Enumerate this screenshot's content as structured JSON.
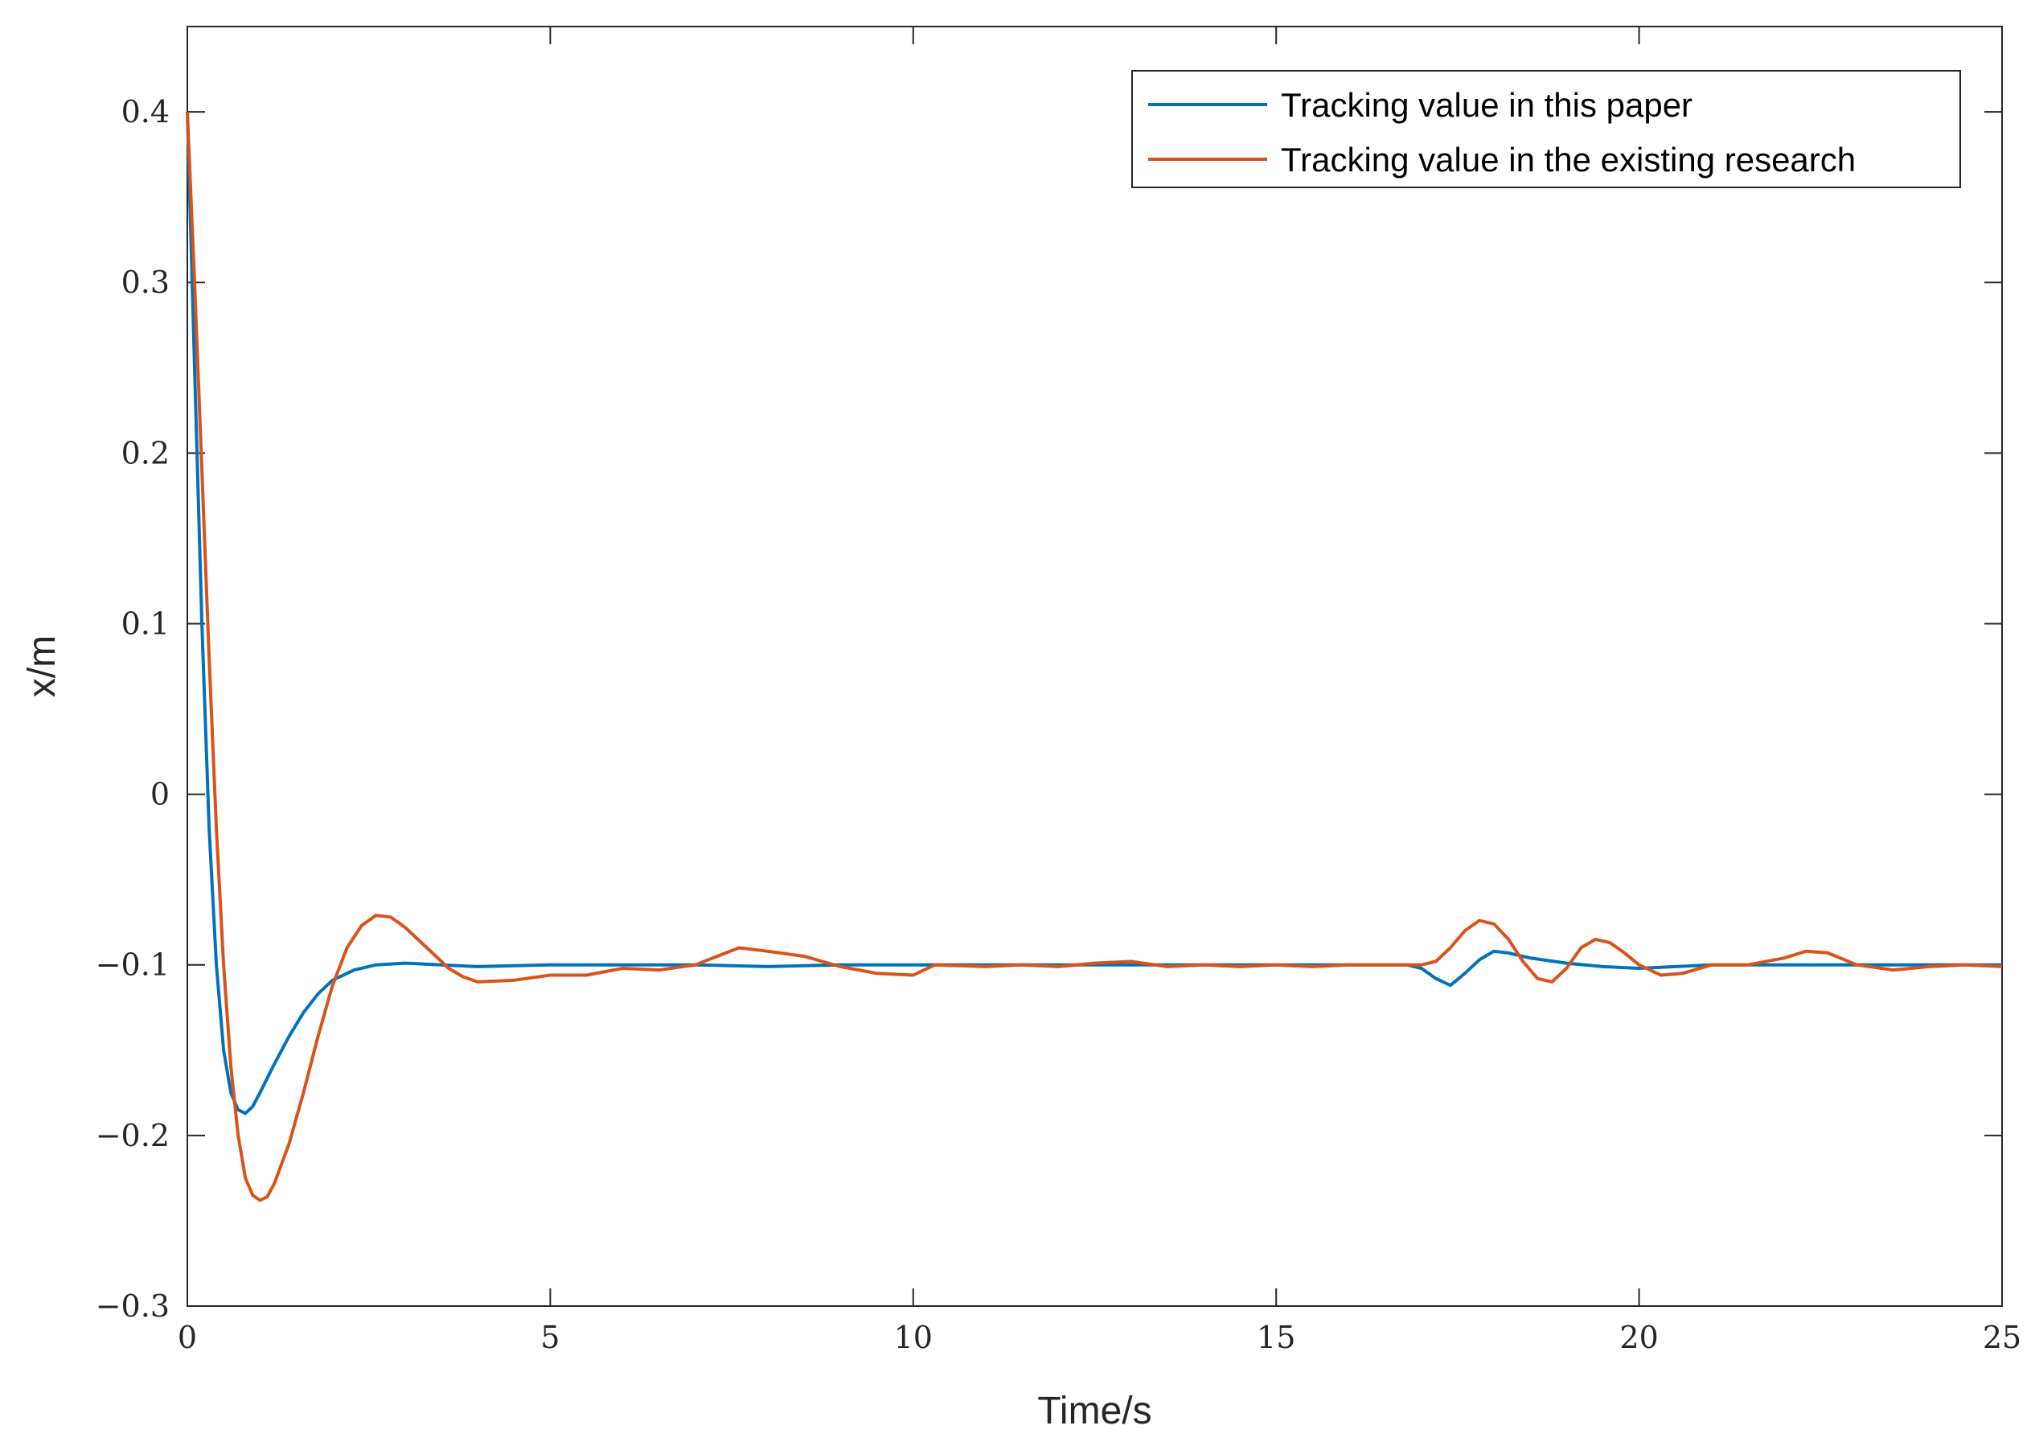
{
  "chart_data": {
    "type": "line",
    "title": "",
    "xlabel": "Time/s",
    "ylabel": "x/m",
    "xlim": [
      0,
      25
    ],
    "ylim": [
      -0.3,
      0.45
    ],
    "xticks": [
      0,
      5,
      10,
      15,
      20,
      25
    ],
    "xtick_labels": [
      "0",
      "5",
      "10",
      "15",
      "20",
      "25"
    ],
    "yticks": [
      -0.3,
      -0.2,
      -0.1,
      0,
      0.1,
      0.2,
      0.3,
      0.4
    ],
    "ytick_labels": [
      "−0.3",
      "−0.2",
      "−0.1",
      "0",
      "0.1",
      "0.2",
      "0.3",
      "0.4"
    ],
    "grid": false,
    "legend_position": "top-right",
    "series": [
      {
        "name": "Tracking value in this paper",
        "color": "#0072BD",
        "points": [
          [
            0,
            0.4
          ],
          [
            0.1,
            0.25
          ],
          [
            0.2,
            0.1
          ],
          [
            0.3,
            -0.02
          ],
          [
            0.4,
            -0.1
          ],
          [
            0.5,
            -0.15
          ],
          [
            0.6,
            -0.175
          ],
          [
            0.7,
            -0.185
          ],
          [
            0.8,
            -0.187
          ],
          [
            0.9,
            -0.183
          ],
          [
            1.0,
            -0.175
          ],
          [
            1.2,
            -0.158
          ],
          [
            1.4,
            -0.142
          ],
          [
            1.6,
            -0.128
          ],
          [
            1.8,
            -0.117
          ],
          [
            2.0,
            -0.109
          ],
          [
            2.3,
            -0.103
          ],
          [
            2.6,
            -0.1
          ],
          [
            3.0,
            -0.099
          ],
          [
            3.5,
            -0.1
          ],
          [
            4.0,
            -0.101
          ],
          [
            5.0,
            -0.1
          ],
          [
            6.0,
            -0.1
          ],
          [
            7.0,
            -0.1
          ],
          [
            8.0,
            -0.101
          ],
          [
            9.0,
            -0.1
          ],
          [
            10.0,
            -0.1
          ],
          [
            11.0,
            -0.1
          ],
          [
            12.0,
            -0.1
          ],
          [
            13.0,
            -0.1
          ],
          [
            14.0,
            -0.1
          ],
          [
            15.0,
            -0.1
          ],
          [
            16.0,
            -0.1
          ],
          [
            16.8,
            -0.1
          ],
          [
            17.0,
            -0.102
          ],
          [
            17.2,
            -0.108
          ],
          [
            17.4,
            -0.112
          ],
          [
            17.6,
            -0.105
          ],
          [
            17.8,
            -0.097
          ],
          [
            18.0,
            -0.092
          ],
          [
            18.2,
            -0.093
          ],
          [
            18.5,
            -0.096
          ],
          [
            19.0,
            -0.099
          ],
          [
            19.5,
            -0.101
          ],
          [
            20.0,
            -0.102
          ],
          [
            21.0,
            -0.1
          ],
          [
            22.0,
            -0.1
          ],
          [
            23.0,
            -0.1
          ],
          [
            24.0,
            -0.1
          ],
          [
            25.0,
            -0.1
          ]
        ]
      },
      {
        "name": "Tracking value in the existing research",
        "color": "#D95319",
        "points": [
          [
            0,
            0.4
          ],
          [
            0.1,
            0.3
          ],
          [
            0.2,
            0.19
          ],
          [
            0.3,
            0.08
          ],
          [
            0.4,
            -0.02
          ],
          [
            0.5,
            -0.1
          ],
          [
            0.6,
            -0.16
          ],
          [
            0.7,
            -0.2
          ],
          [
            0.8,
            -0.225
          ],
          [
            0.9,
            -0.235
          ],
          [
            1.0,
            -0.238
          ],
          [
            1.1,
            -0.236
          ],
          [
            1.2,
            -0.228
          ],
          [
            1.4,
            -0.205
          ],
          [
            1.6,
            -0.175
          ],
          [
            1.8,
            -0.142
          ],
          [
            2.0,
            -0.112
          ],
          [
            2.2,
            -0.09
          ],
          [
            2.4,
            -0.077
          ],
          [
            2.6,
            -0.071
          ],
          [
            2.8,
            -0.072
          ],
          [
            3.0,
            -0.078
          ],
          [
            3.2,
            -0.086
          ],
          [
            3.4,
            -0.094
          ],
          [
            3.6,
            -0.102
          ],
          [
            3.8,
            -0.107
          ],
          [
            4.0,
            -0.11
          ],
          [
            4.5,
            -0.109
          ],
          [
            5.0,
            -0.106
          ],
          [
            5.5,
            -0.106
          ],
          [
            6.0,
            -0.102
          ],
          [
            6.5,
            -0.103
          ],
          [
            7.0,
            -0.1
          ],
          [
            7.3,
            -0.095
          ],
          [
            7.6,
            -0.09
          ],
          [
            8.0,
            -0.092
          ],
          [
            8.5,
            -0.095
          ],
          [
            9.0,
            -0.101
          ],
          [
            9.5,
            -0.105
          ],
          [
            10.0,
            -0.106
          ],
          [
            10.3,
            -0.1
          ],
          [
            11.0,
            -0.101
          ],
          [
            11.5,
            -0.1
          ],
          [
            12.0,
            -0.101
          ],
          [
            12.5,
            -0.099
          ],
          [
            13.0,
            -0.098
          ],
          [
            13.5,
            -0.101
          ],
          [
            14.0,
            -0.1
          ],
          [
            14.5,
            -0.101
          ],
          [
            15.0,
            -0.1
          ],
          [
            15.5,
            -0.101
          ],
          [
            16.0,
            -0.1
          ],
          [
            16.5,
            -0.1
          ],
          [
            17.0,
            -0.1
          ],
          [
            17.2,
            -0.098
          ],
          [
            17.4,
            -0.09
          ],
          [
            17.6,
            -0.08
          ],
          [
            17.8,
            -0.074
          ],
          [
            18.0,
            -0.076
          ],
          [
            18.2,
            -0.085
          ],
          [
            18.4,
            -0.098
          ],
          [
            18.6,
            -0.108
          ],
          [
            18.8,
            -0.11
          ],
          [
            19.0,
            -0.102
          ],
          [
            19.2,
            -0.09
          ],
          [
            19.4,
            -0.085
          ],
          [
            19.6,
            -0.087
          ],
          [
            19.8,
            -0.093
          ],
          [
            20.0,
            -0.1
          ],
          [
            20.3,
            -0.106
          ],
          [
            20.6,
            -0.105
          ],
          [
            21.0,
            -0.1
          ],
          [
            21.5,
            -0.1
          ],
          [
            22.0,
            -0.096
          ],
          [
            22.3,
            -0.092
          ],
          [
            22.6,
            -0.093
          ],
          [
            23.0,
            -0.1
          ],
          [
            23.5,
            -0.103
          ],
          [
            24.0,
            -0.101
          ],
          [
            24.5,
            -0.1
          ],
          [
            25.0,
            -0.101
          ]
        ]
      }
    ]
  }
}
